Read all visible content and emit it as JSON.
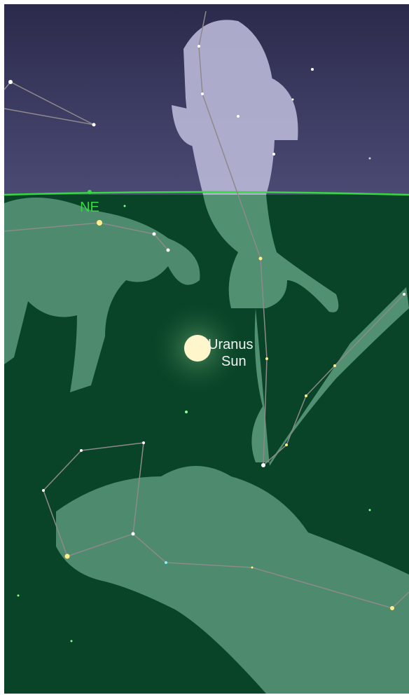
{
  "sky_view": {
    "horizon_label": "NE",
    "object_labels": [
      "Uranus",
      "Sun"
    ]
  }
}
